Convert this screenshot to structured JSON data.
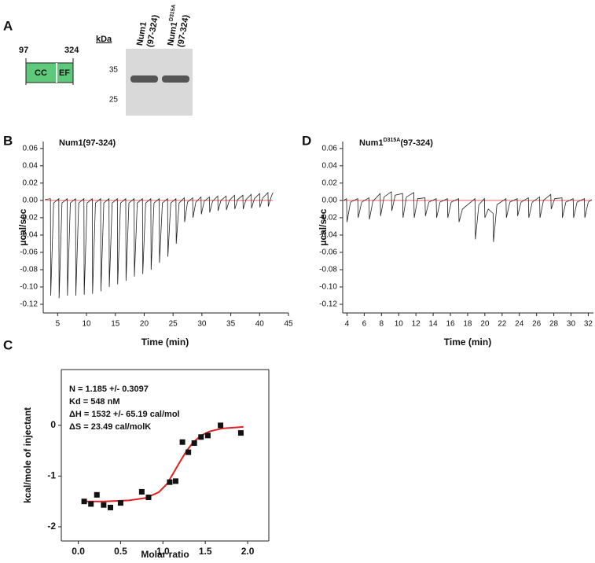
{
  "panel_a": {
    "panel": "A",
    "domain_start": "97",
    "domain_end": "324",
    "domains": [
      "CC",
      "EF"
    ],
    "gel": {
      "unit": "kDa",
      "markers": [
        35,
        25
      ],
      "lanes": [
        {
          "name": "Num1",
          "construct": "(97-324)"
        },
        {
          "name": "Num1",
          "superscript": "D315A",
          "construct": "(97-324)"
        }
      ]
    }
  },
  "chart_data": [
    {
      "type": "line",
      "panel": "B",
      "title": "Num1(97-324)",
      "x_label": "Time (min)",
      "y_label": "µcal/sec",
      "xlim": [
        2.5,
        45
      ],
      "ylim": [
        -0.13,
        0.068
      ],
      "xticks": [
        5,
        10,
        15,
        20,
        25,
        30,
        35,
        40,
        45
      ],
      "yticks": [
        0.06,
        0.04,
        0.02,
        {
          "value": 0,
          "label": "0.00"
        },
        -0.02,
        -0.04,
        -0.06,
        -0.08,
        {
          "value": -0.1,
          "label": "-0.10"
        },
        -0.12
      ],
      "series": [
        {
          "color": "#222222",
          "x": [
            2.8,
            3.75,
            3.8,
            4.3,
            5.2,
            5.25,
            5.75,
            6.65,
            6.7,
            7.2,
            8.1,
            8.15,
            8.65,
            9.55,
            9.6,
            10.1,
            11.0,
            11.05,
            11.55,
            12.45,
            12.5,
            13.0,
            13.9,
            13.95,
            14.45,
            15.35,
            15.4,
            15.9,
            16.8,
            16.85,
            17.35,
            18.25,
            18.3,
            18.8,
            19.7,
            19.75,
            20.25,
            21.15,
            21.2,
            21.7,
            22.6,
            22.65,
            23.15,
            24.05,
            24.1,
            24.6,
            25.5,
            25.55,
            26.05,
            26.95,
            27.0,
            27.5,
            28.4,
            28.45,
            28.95,
            29.85,
            29.9,
            30.4,
            31.3,
            31.35,
            31.85,
            32.75,
            32.8,
            33.3,
            34.2,
            34.25,
            34.75,
            35.65,
            35.7,
            36.2,
            37.1,
            37.15,
            37.65,
            38.55,
            38.6,
            39.1,
            40.0,
            40.05,
            40.55,
            41.45,
            41.5,
            42.0,
            42.3
          ],
          "values": [
            0.001,
            0.002,
            -0.11,
            -0.003,
            0.002,
            -0.113,
            -0.003,
            0.002,
            -0.11,
            -0.003,
            0.002,
            -0.11,
            -0.003,
            0.002,
            -0.109,
            -0.003,
            0.002,
            -0.108,
            -0.003,
            0.002,
            -0.105,
            -0.003,
            0.002,
            -0.1,
            -0.003,
            0.002,
            -0.097,
            -0.003,
            0.002,
            -0.093,
            -0.003,
            0.002,
            -0.088,
            -0.003,
            0.002,
            -0.085,
            -0.003,
            0.002,
            -0.08,
            -0.003,
            0.002,
            -0.072,
            -0.003,
            0.002,
            -0.065,
            -0.003,
            0.002,
            -0.05,
            -0.003,
            0.003,
            -0.025,
            -0.002,
            0.003,
            -0.02,
            -0.002,
            0.004,
            -0.016,
            -0.001,
            0.004,
            -0.014,
            -0.001,
            0.005,
            -0.012,
            0.0,
            0.005,
            -0.011,
            0.0,
            0.006,
            -0.01,
            0.001,
            0.006,
            -0.01,
            0.001,
            0.007,
            -0.009,
            0.002,
            0.008,
            -0.008,
            0.003,
            0.009,
            -0.007,
            0.004,
            0.009
          ]
        },
        {
          "color": "#e03030",
          "x": [
            2.8,
            42.3
          ],
          "values": [
            0,
            0
          ]
        }
      ]
    },
    {
      "type": "line",
      "panel": "D",
      "title": {
        "base": "Num1",
        "superscript": "D315A",
        "suffix": "(97-324)"
      },
      "x_label": "Time (min)",
      "y_label": "µcal/sec",
      "xlim": [
        3.5,
        32.6
      ],
      "ylim": [
        -0.13,
        0.068
      ],
      "xticks": [
        4,
        6,
        8,
        10,
        12,
        14,
        16,
        18,
        20,
        22,
        24,
        26,
        28,
        30,
        32
      ],
      "yticks": [
        0.06,
        0.04,
        0.02,
        {
          "value": 0,
          "label": "0.00"
        },
        -0.02,
        -0.04,
        -0.06,
        -0.08,
        {
          "value": -0.1,
          "label": "-0.10"
        },
        -0.12
      ],
      "series": [
        {
          "color": "#222222",
          "x": [
            3.6,
            3.95,
            4.0,
            4.4,
            5.25,
            5.3,
            5.7,
            6.55,
            6.6,
            7.0,
            7.85,
            7.9,
            8.3,
            9.15,
            9.2,
            9.6,
            10.45,
            10.5,
            10.9,
            11.75,
            11.8,
            12.2,
            13.05,
            13.1,
            13.5,
            14.35,
            14.4,
            14.8,
            15.65,
            15.7,
            16.1,
            16.95,
            17.0,
            17.4,
            18.85,
            18.9,
            19.3,
            19.95,
            20.0,
            20.4,
            20.95,
            21.0,
            21.4,
            22.45,
            22.5,
            22.9,
            23.75,
            23.8,
            24.2,
            25.05,
            25.1,
            25.5,
            26.35,
            26.4,
            26.8,
            27.65,
            27.7,
            28.1,
            28.95,
            29.0,
            29.4,
            30.25,
            30.3,
            30.7,
            31.55,
            31.6,
            32.0,
            32.4
          ],
          "values": [
            0.0,
            0.002,
            -0.025,
            -0.002,
            0.002,
            -0.02,
            -0.002,
            0.003,
            -0.022,
            -0.001,
            0.008,
            -0.018,
            0.004,
            0.01,
            -0.012,
            0.006,
            0.008,
            -0.02,
            0.004,
            0.009,
            -0.02,
            0.002,
            0.003,
            -0.018,
            -0.002,
            0.002,
            -0.02,
            -0.002,
            0.002,
            -0.02,
            -0.002,
            0.002,
            -0.025,
            -0.01,
            0.002,
            -0.045,
            -0.005,
            0.002,
            -0.02,
            -0.01,
            -0.015,
            -0.048,
            -0.005,
            0.002,
            -0.02,
            -0.002,
            0.002,
            -0.018,
            -0.002,
            0.003,
            -0.02,
            -0.002,
            0.004,
            -0.02,
            0.0,
            0.007,
            -0.01,
            0.002,
            0.003,
            -0.02,
            -0.002,
            0.002,
            -0.02,
            -0.002,
            0.002,
            -0.02,
            -0.002,
            0.001
          ]
        },
        {
          "color": "#e03030",
          "x": [
            3.6,
            32.4
          ],
          "values": [
            0,
            0
          ]
        }
      ]
    },
    {
      "type": "scatter",
      "panel": "C",
      "x_label": "Molar ratio",
      "y_label": "kcal/mole of injectant",
      "box": true,
      "annotations": [
        "N = 1.185 +/- 0.3097",
        "Kd = 548 nM",
        "ΔH = 1532 +/- 65.19 cal/mol",
        "ΔS = 23.49 cal/molK"
      ],
      "xlim": [
        -0.2,
        2.25
      ],
      "ylim": [
        -2.28,
        1.1
      ],
      "xticks": [
        {
          "value": 0,
          "label": "0.0"
        },
        0.5,
        {
          "value": 1,
          "label": "1.0"
        },
        1.5,
        {
          "value": 2,
          "label": "2.0"
        }
      ],
      "yticks": [
        -2,
        -1,
        0
      ],
      "series": [
        {
          "mode": "markers",
          "color": "#111111",
          "x": [
            0.07,
            0.15,
            0.22,
            0.3,
            0.38,
            0.5,
            0.75,
            0.83,
            1.08,
            1.15,
            1.23,
            1.3,
            1.37,
            1.45,
            1.53,
            1.68,
            1.92
          ],
          "values": [
            -1.5,
            -1.55,
            -1.37,
            -1.57,
            -1.62,
            -1.53,
            -1.31,
            -1.42,
            -1.12,
            -1.1,
            -0.33,
            -0.53,
            -0.35,
            -0.23,
            -0.2,
            0.0,
            -0.15
          ]
        },
        {
          "mode": "line",
          "color": "#e02020",
          "x": [
            0.05,
            0.3,
            0.6,
            0.8,
            0.95,
            1.05,
            1.12,
            1.2,
            1.28,
            1.36,
            1.45,
            1.55,
            1.7,
            1.95
          ],
          "values": [
            -1.5,
            -1.5,
            -1.48,
            -1.43,
            -1.32,
            -1.15,
            -0.95,
            -0.72,
            -0.5,
            -0.33,
            -0.2,
            -0.12,
            -0.06,
            -0.03
          ]
        }
      ]
    }
  ]
}
